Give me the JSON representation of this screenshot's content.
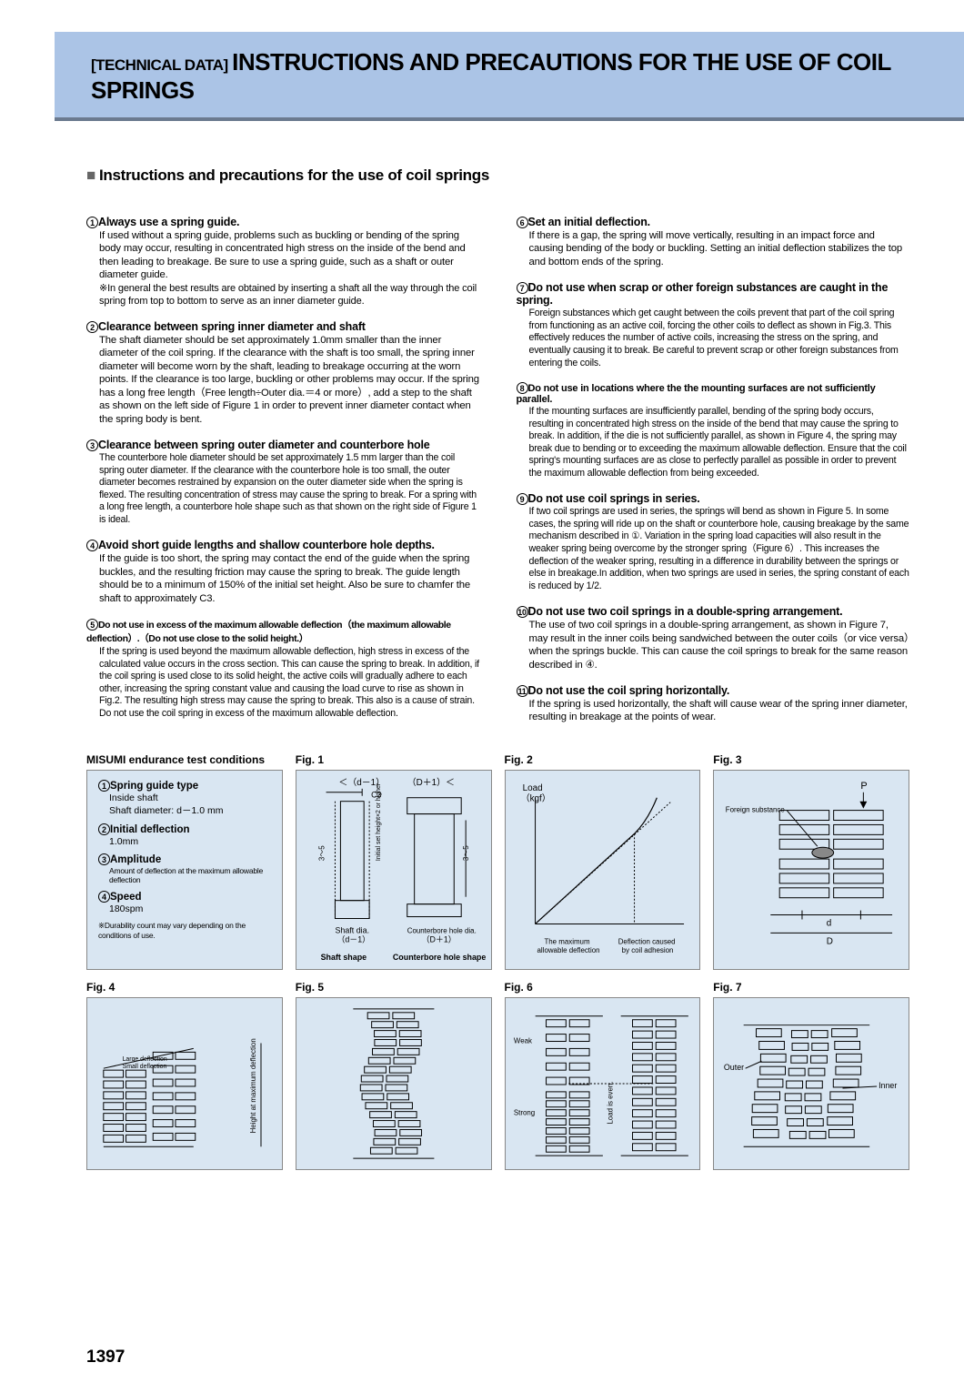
{
  "banner": {
    "prefix": "[TECHNICAL DATA]",
    "title": "INSTRUCTIONS AND PRECAUTIONS FOR THE USE OF COIL SPRINGS"
  },
  "section_title": "Instructions and precautions for the use of coil springs",
  "left": [
    {
      "num": "1",
      "title": "Always use a spring guide.",
      "body": "If used without a spring guide, problems such as buckling or bending of the spring body may occur, resulting in concentrated high stress on the inside of the bend and then leading to breakage. Be sure to use a spring guide, such as a shaft or outer diameter guide.",
      "note": "※In general the best results are obtained by inserting a shaft all the way through the coil spring from top to bottom to serve as an inner diameter guide."
    },
    {
      "num": "2",
      "title": "Clearance between spring inner diameter and shaft",
      "body": "The shaft diameter should be set approximately 1.0mm smaller than the inner diameter of the coil spring. If the clearance with the shaft is too small, the spring inner diameter will become worn by the shaft, leading to breakage occurring at the worn points. If the clearance is too large, buckling or other problems may occur. If the spring has a long free length（Free length÷Outer dia.＝4 or more）, add a step to the shaft as shown on the left side of Figure 1 in order to prevent inner diameter contact when the spring body is bent."
    },
    {
      "num": "3",
      "title": "Clearance between spring outer diameter and counterbore hole",
      "body": "The counterbore hole diameter should be set approximately 1.5 mm larger than the coil spring outer diameter. If the clearance with the counterbore hole is too small, the outer diameter becomes restrained by expansion on the outer diameter side when the spring is flexed. The resulting concentration of stress may cause the spring to break. For a spring with a long free length, a counterbore hole shape such as that shown on the right side of Figure 1 is ideal.",
      "condensed": true
    },
    {
      "num": "4",
      "title": "Avoid short guide lengths and shallow counterbore hole depths.",
      "body": "If the guide is too short, the spring may contact the end of the guide when the spring buckles, and the resulting friction may cause the spring to break. The guide length should be to a minimum of 150% of the initial set height. Also be sure to chamfer the shaft to approximately C3."
    },
    {
      "num": "5",
      "title": "Do not use in excess of the maximum allowable deflection（the maximum allowable deflection）.（Do not use close to the solid height.）",
      "tight": true,
      "body": "If the spring is used beyond the maximum allowable deflection, high stress in excess of the calculated value occurs in the cross section. This can cause the spring to break. In addition, if the coil spring is used close to its solid height, the active coils will gradually adhere to each other, increasing the spring constant value and causing the load curve to rise as shown in Fig.2. The resulting high stress may cause the spring to break. This also is a cause of strain. Do not use the coil spring in excess of the maximum allowable deflection.",
      "condensed": true
    }
  ],
  "right": [
    {
      "num": "6",
      "title": "Set an initial deflection.",
      "body": "If there is a gap, the spring will move vertically, resulting in an impact force and causing bending of the body or buckling. Setting an initial deflection stabilizes the top and bottom ends of the spring."
    },
    {
      "num": "7",
      "title": "Do not use when scrap or other foreign substances are caught in the spring.",
      "body": "Foreign substances which get caught between the coils prevent that part of the coil spring from functioning as an active coil, forcing the other coils to deflect as shown in Fig.3. This effectively reduces the number of active coils, increasing the stress on the spring, and eventually causing it to break. Be careful to prevent scrap or other foreign substances from entering the coils.",
      "condensed": true
    },
    {
      "num": "8",
      "title": "Do not use in locations where the the mounting surfaces are not sufficiently parallel.",
      "tight_title": true,
      "body": "If the mounting surfaces are insufficiently parallel, bending of the spring body occurs, resulting in concentrated high stress on the inside of the bend that may cause the spring to break. In addition, if the die is not sufficiently parallel, as shown in Figure 4, the spring may break due to bending or to exceeding the maximum allowable deflection. Ensure that the coil spring's mounting surfaces are as close to perfectly parallel as possible in order to prevent the maximum allowable deflection from being exceeded.",
      "condensed": true
    },
    {
      "num": "9",
      "title": "Do not use coil springs in series.",
      "body": "If two coil springs are used in series, the springs will bend as shown in Figure 5. In some cases, the spring will ride up on the shaft or counterbore hole, causing breakage by the same mechanism described in ①. Variation in the spring load capacities will also result in the weaker spring being overcome by the stronger spring（Figure 6）. This increases the deflection of the weaker spring, resulting in a difference in durability between the springs or else in breakage.In addition, when two springs are used in series, the spring constant of each is reduced by 1/2.",
      "condensed": true
    },
    {
      "num": "10",
      "title": "Do not use two coil springs in a double-spring arrangement.",
      "body": "The use of two coil springs in a double-spring arrangement, as shown in Figure 7, may result in the inner coils being sandwiched between the outer coils（or vice versa）when the springs buckle. This can cause the coil springs to break for the same reason described in ④."
    },
    {
      "num": "11",
      "title": "Do not use the coil spring horizontally.",
      "body": "If the spring is used horizontally, the shaft will cause wear of the spring inner diameter, resulting in breakage at the points of wear."
    }
  ],
  "test": {
    "heading": "MISUMI endurance test conditions",
    "items": [
      {
        "n": "1",
        "t": "Spring guide type",
        "v": "Inside shaft\nShaft diameter: d－1.0 mm"
      },
      {
        "n": "2",
        "t": "Initial deflection",
        "v": "1.0mm"
      },
      {
        "n": "3",
        "t": "Amplitude",
        "v": "Amount of deflection at the maximum allowable deflection",
        "tiny": true
      },
      {
        "n": "4",
        "t": "Speed",
        "v": "180spm"
      }
    ],
    "foot": "※Durability count may vary depending on the conditions of use."
  },
  "figs": {
    "f1": {
      "label": "Fig. 1",
      "shaft_label": "Shaft shape",
      "bore_label": "Counterbore shape",
      "c3": "C3",
      "d1": "＜（d－1）",
      "D1": "（D＋1）＜",
      "shaft_dia": "Shaft dia.\n（d－1）",
      "bore_dia": "Counterbore hole dia.\n（D＋1）",
      "side": "3～5",
      "hgt": "Initial set height×2 or higher",
      "b1": "Shaft shape",
      "b2": "Counterbore hole shape"
    },
    "f2": {
      "label": "Fig. 2",
      "y": "Load\n（kgf）",
      "x1": "The maximum\nallowable deflection",
      "x2": "Deflection caused\nby coil adhesion"
    },
    "f3": {
      "label": "Fig. 3",
      "p": "P",
      "fs": "Foreign substance",
      "d": "d",
      "D": "D"
    },
    "f4": {
      "label": "Fig. 4",
      "ld": "Large deflection",
      "sd": "Small deflection",
      "h": "Height at maximum deflection"
    },
    "f5": {
      "label": "Fig. 5"
    },
    "f6": {
      "label": "Fig. 6",
      "w": "Weak",
      "s": "Strong",
      "li": "Load is even."
    },
    "f7": {
      "label": "Fig. 7",
      "o": "Outer",
      "i": "Inner"
    }
  },
  "page": "1397"
}
